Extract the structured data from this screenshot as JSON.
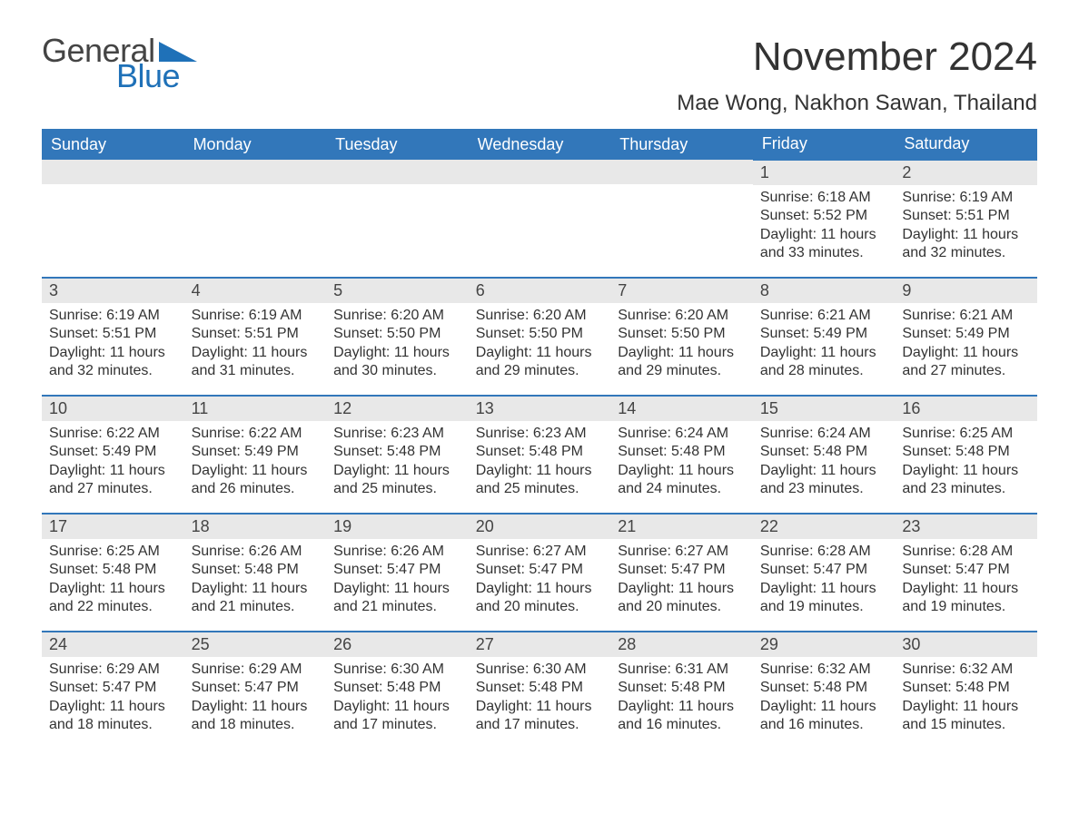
{
  "brand": {
    "word1": "General",
    "word2": "Blue",
    "tri_color": "#1f71b8"
  },
  "header": {
    "month_title": "November 2024",
    "location": "Mae Wong, Nakhon Sawan, Thailand"
  },
  "style": {
    "header_bg": "#3277ba",
    "header_fg": "#ffffff",
    "row_accent": "#3277ba",
    "daynum_bg": "#e8e8e8",
    "body_bg": "#ffffff",
    "text_color": "#333333",
    "month_title_fontsize": 44,
    "location_fontsize": 24,
    "weekday_fontsize": 18,
    "daynum_fontsize": 18,
    "body_fontsize": 16
  },
  "calendar": {
    "weekdays": [
      "Sunday",
      "Monday",
      "Tuesday",
      "Wednesday",
      "Thursday",
      "Friday",
      "Saturday"
    ],
    "weeks": [
      [
        null,
        null,
        null,
        null,
        null,
        {
          "day": "1",
          "sunrise": "Sunrise: 6:18 AM",
          "sunset": "Sunset: 5:52 PM",
          "daylight1": "Daylight: 11 hours",
          "daylight2": "and 33 minutes."
        },
        {
          "day": "2",
          "sunrise": "Sunrise: 6:19 AM",
          "sunset": "Sunset: 5:51 PM",
          "daylight1": "Daylight: 11 hours",
          "daylight2": "and 32 minutes."
        }
      ],
      [
        {
          "day": "3",
          "sunrise": "Sunrise: 6:19 AM",
          "sunset": "Sunset: 5:51 PM",
          "daylight1": "Daylight: 11 hours",
          "daylight2": "and 32 minutes."
        },
        {
          "day": "4",
          "sunrise": "Sunrise: 6:19 AM",
          "sunset": "Sunset: 5:51 PM",
          "daylight1": "Daylight: 11 hours",
          "daylight2": "and 31 minutes."
        },
        {
          "day": "5",
          "sunrise": "Sunrise: 6:20 AM",
          "sunset": "Sunset: 5:50 PM",
          "daylight1": "Daylight: 11 hours",
          "daylight2": "and 30 minutes."
        },
        {
          "day": "6",
          "sunrise": "Sunrise: 6:20 AM",
          "sunset": "Sunset: 5:50 PM",
          "daylight1": "Daylight: 11 hours",
          "daylight2": "and 29 minutes."
        },
        {
          "day": "7",
          "sunrise": "Sunrise: 6:20 AM",
          "sunset": "Sunset: 5:50 PM",
          "daylight1": "Daylight: 11 hours",
          "daylight2": "and 29 minutes."
        },
        {
          "day": "8",
          "sunrise": "Sunrise: 6:21 AM",
          "sunset": "Sunset: 5:49 PM",
          "daylight1": "Daylight: 11 hours",
          "daylight2": "and 28 minutes."
        },
        {
          "day": "9",
          "sunrise": "Sunrise: 6:21 AM",
          "sunset": "Sunset: 5:49 PM",
          "daylight1": "Daylight: 11 hours",
          "daylight2": "and 27 minutes."
        }
      ],
      [
        {
          "day": "10",
          "sunrise": "Sunrise: 6:22 AM",
          "sunset": "Sunset: 5:49 PM",
          "daylight1": "Daylight: 11 hours",
          "daylight2": "and 27 minutes."
        },
        {
          "day": "11",
          "sunrise": "Sunrise: 6:22 AM",
          "sunset": "Sunset: 5:49 PM",
          "daylight1": "Daylight: 11 hours",
          "daylight2": "and 26 minutes."
        },
        {
          "day": "12",
          "sunrise": "Sunrise: 6:23 AM",
          "sunset": "Sunset: 5:48 PM",
          "daylight1": "Daylight: 11 hours",
          "daylight2": "and 25 minutes."
        },
        {
          "day": "13",
          "sunrise": "Sunrise: 6:23 AM",
          "sunset": "Sunset: 5:48 PM",
          "daylight1": "Daylight: 11 hours",
          "daylight2": "and 25 minutes."
        },
        {
          "day": "14",
          "sunrise": "Sunrise: 6:24 AM",
          "sunset": "Sunset: 5:48 PM",
          "daylight1": "Daylight: 11 hours",
          "daylight2": "and 24 minutes."
        },
        {
          "day": "15",
          "sunrise": "Sunrise: 6:24 AM",
          "sunset": "Sunset: 5:48 PM",
          "daylight1": "Daylight: 11 hours",
          "daylight2": "and 23 minutes."
        },
        {
          "day": "16",
          "sunrise": "Sunrise: 6:25 AM",
          "sunset": "Sunset: 5:48 PM",
          "daylight1": "Daylight: 11 hours",
          "daylight2": "and 23 minutes."
        }
      ],
      [
        {
          "day": "17",
          "sunrise": "Sunrise: 6:25 AM",
          "sunset": "Sunset: 5:48 PM",
          "daylight1": "Daylight: 11 hours",
          "daylight2": "and 22 minutes."
        },
        {
          "day": "18",
          "sunrise": "Sunrise: 6:26 AM",
          "sunset": "Sunset: 5:48 PM",
          "daylight1": "Daylight: 11 hours",
          "daylight2": "and 21 minutes."
        },
        {
          "day": "19",
          "sunrise": "Sunrise: 6:26 AM",
          "sunset": "Sunset: 5:47 PM",
          "daylight1": "Daylight: 11 hours",
          "daylight2": "and 21 minutes."
        },
        {
          "day": "20",
          "sunrise": "Sunrise: 6:27 AM",
          "sunset": "Sunset: 5:47 PM",
          "daylight1": "Daylight: 11 hours",
          "daylight2": "and 20 minutes."
        },
        {
          "day": "21",
          "sunrise": "Sunrise: 6:27 AM",
          "sunset": "Sunset: 5:47 PM",
          "daylight1": "Daylight: 11 hours",
          "daylight2": "and 20 minutes."
        },
        {
          "day": "22",
          "sunrise": "Sunrise: 6:28 AM",
          "sunset": "Sunset: 5:47 PM",
          "daylight1": "Daylight: 11 hours",
          "daylight2": "and 19 minutes."
        },
        {
          "day": "23",
          "sunrise": "Sunrise: 6:28 AM",
          "sunset": "Sunset: 5:47 PM",
          "daylight1": "Daylight: 11 hours",
          "daylight2": "and 19 minutes."
        }
      ],
      [
        {
          "day": "24",
          "sunrise": "Sunrise: 6:29 AM",
          "sunset": "Sunset: 5:47 PM",
          "daylight1": "Daylight: 11 hours",
          "daylight2": "and 18 minutes."
        },
        {
          "day": "25",
          "sunrise": "Sunrise: 6:29 AM",
          "sunset": "Sunset: 5:47 PM",
          "daylight1": "Daylight: 11 hours",
          "daylight2": "and 18 minutes."
        },
        {
          "day": "26",
          "sunrise": "Sunrise: 6:30 AM",
          "sunset": "Sunset: 5:48 PM",
          "daylight1": "Daylight: 11 hours",
          "daylight2": "and 17 minutes."
        },
        {
          "day": "27",
          "sunrise": "Sunrise: 6:30 AM",
          "sunset": "Sunset: 5:48 PM",
          "daylight1": "Daylight: 11 hours",
          "daylight2": "and 17 minutes."
        },
        {
          "day": "28",
          "sunrise": "Sunrise: 6:31 AM",
          "sunset": "Sunset: 5:48 PM",
          "daylight1": "Daylight: 11 hours",
          "daylight2": "and 16 minutes."
        },
        {
          "day": "29",
          "sunrise": "Sunrise: 6:32 AM",
          "sunset": "Sunset: 5:48 PM",
          "daylight1": "Daylight: 11 hours",
          "daylight2": "and 16 minutes."
        },
        {
          "day": "30",
          "sunrise": "Sunrise: 6:32 AM",
          "sunset": "Sunset: 5:48 PM",
          "daylight1": "Daylight: 11 hours",
          "daylight2": "and 15 minutes."
        }
      ]
    ]
  }
}
